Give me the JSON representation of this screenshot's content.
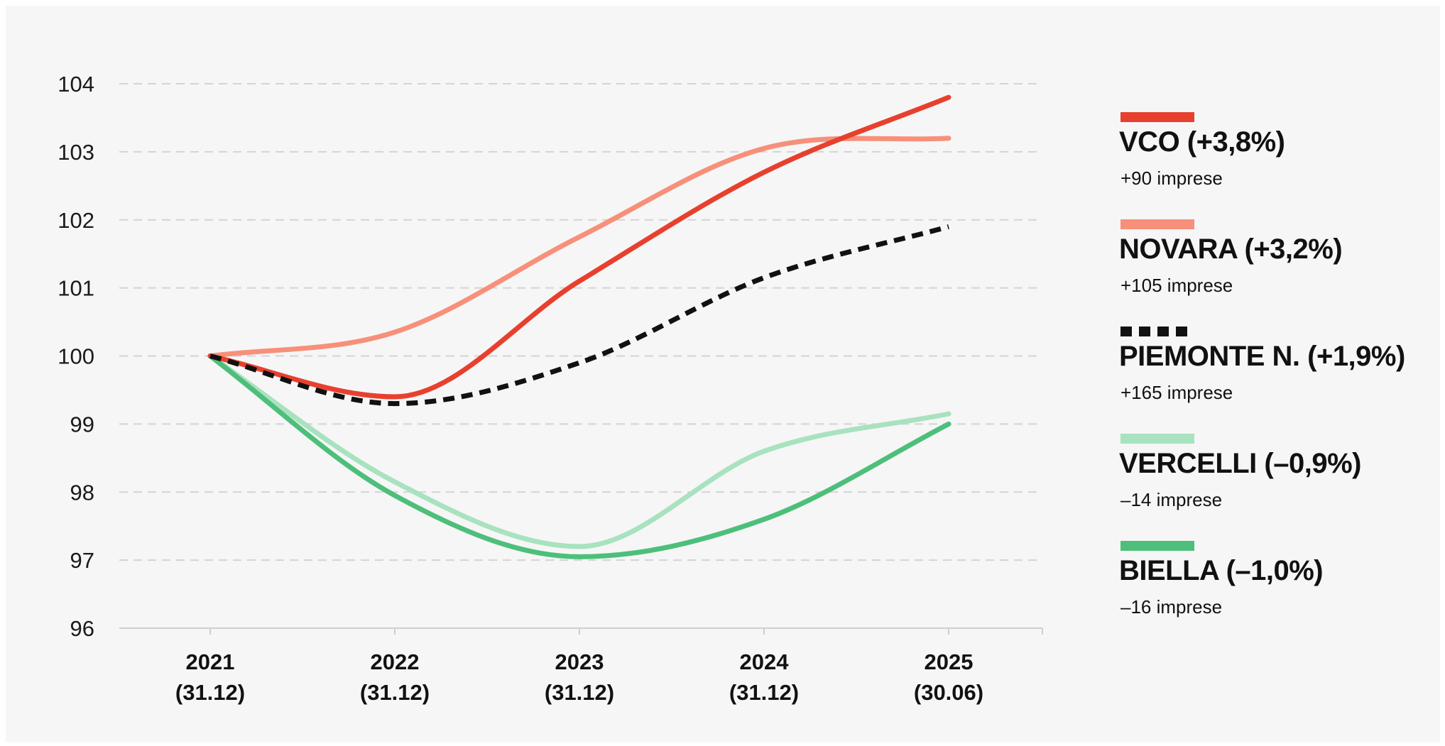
{
  "chart_data": {
    "type": "line",
    "title": "",
    "xlabel": "",
    "ylabel": "",
    "x": [
      "2021",
      "2022",
      "2023",
      "2024",
      "2025"
    ],
    "x_sublabels": [
      "(31.12)",
      "(31.12)",
      "(31.12)",
      "(31.12)",
      "(30.06)"
    ],
    "ylim": [
      96,
      104
    ],
    "yticks": [
      96,
      97,
      98,
      99,
      100,
      101,
      102,
      103,
      104
    ],
    "grid": "horizontal-dashed",
    "legend_position": "right",
    "series": [
      {
        "name": "VCO (+3,8%)",
        "sub": "+90 imprese",
        "color": "#e8402e",
        "dashed": false,
        "values": [
          100,
          99.4,
          101.1,
          102.7,
          103.8
        ]
      },
      {
        "name": "NOVARA (+3,2%)",
        "sub": "+105 imprese",
        "color": "#f7907a",
        "dashed": false,
        "values": [
          100,
          100.35,
          101.75,
          103.05,
          103.2
        ]
      },
      {
        "name": "PIEMONTE N. (+1,9%)",
        "sub": "+165 imprese",
        "color": "#111111",
        "dashed": true,
        "values": [
          100,
          99.3,
          99.9,
          101.15,
          101.9
        ]
      },
      {
        "name": "VERCELLI (–0,9%)",
        "sub": "–14 imprese",
        "color": "#a8e2bf",
        "dashed": false,
        "values": [
          100,
          98.15,
          97.2,
          98.6,
          99.15
        ]
      },
      {
        "name": "BIELLA (–1,0%)",
        "sub": "–16 imprese",
        "color": "#4dbf7a",
        "dashed": false,
        "values": [
          100,
          97.95,
          97.05,
          97.6,
          99.0
        ]
      }
    ]
  }
}
